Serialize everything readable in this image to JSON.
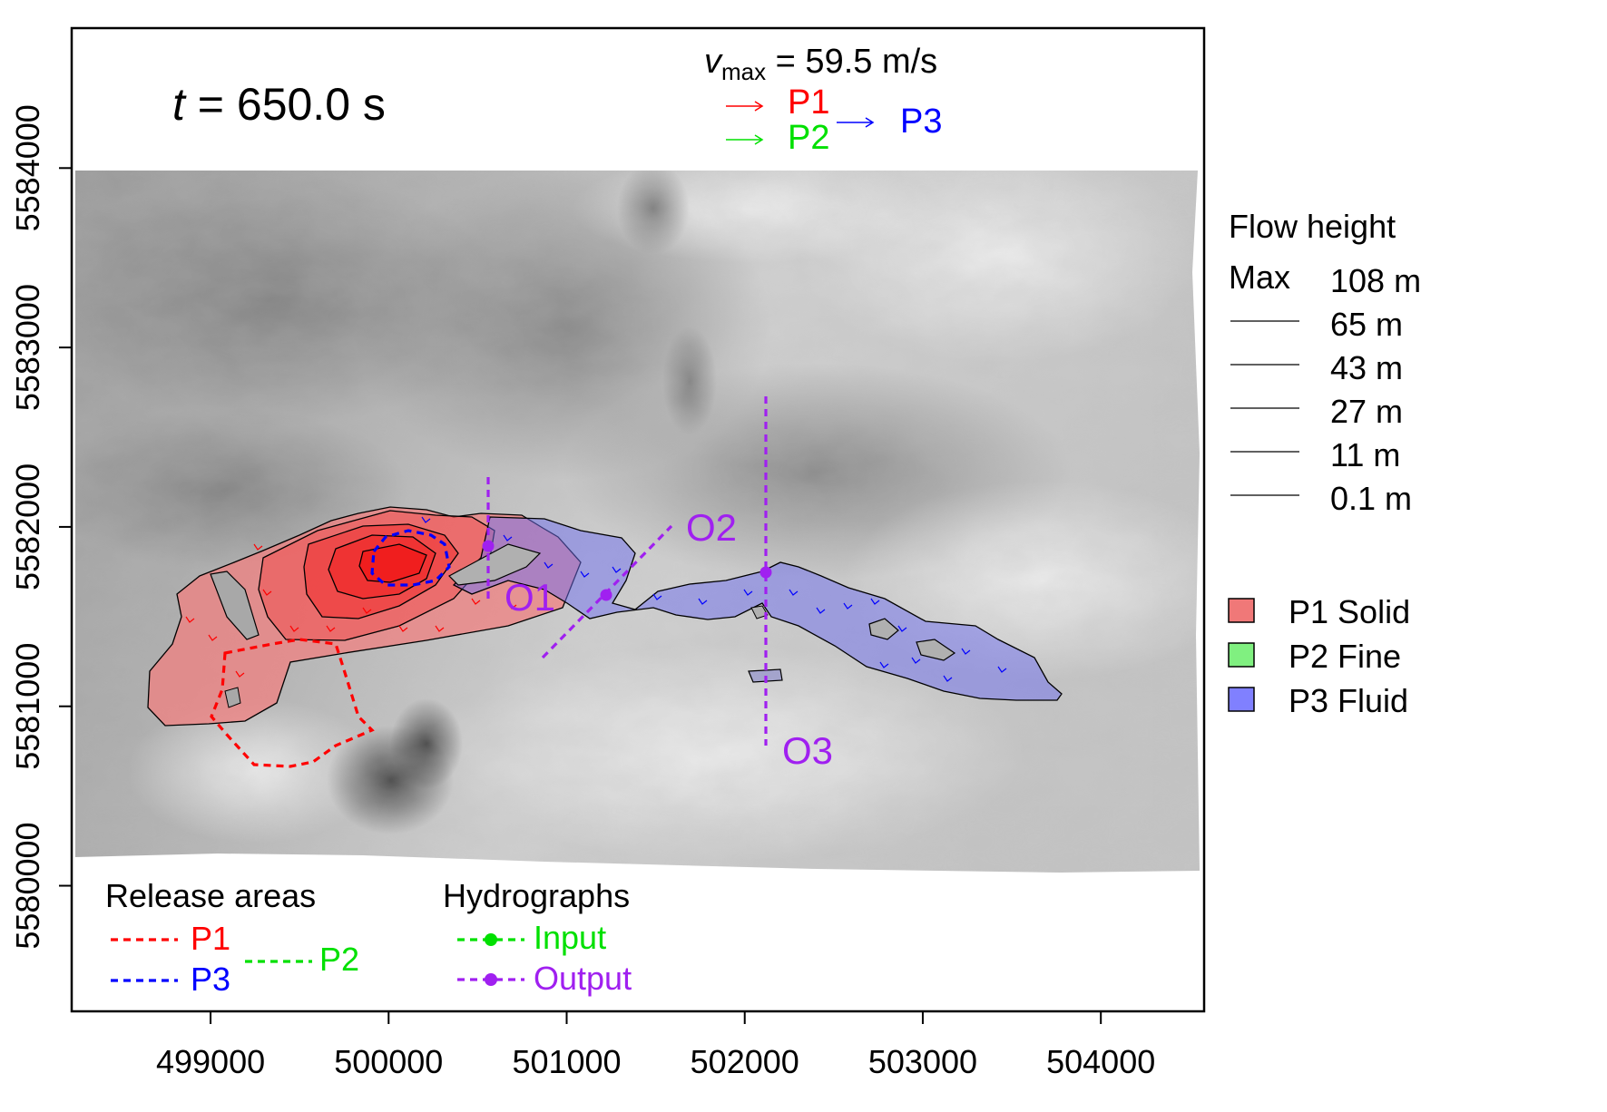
{
  "time_label": {
    "var": "t",
    "rest": " = 650.0 s"
  },
  "velocity": {
    "symbol": "v",
    "subscript": "max",
    "value": " = 59.5 m/s",
    "arrows": [
      {
        "label": "P1",
        "color": "#ff0000"
      },
      {
        "label": "P2",
        "color": "#00e000"
      },
      {
        "label": "P3",
        "color": "#0000ff"
      }
    ]
  },
  "axes": {
    "x_ticks": [
      "499000",
      "500000",
      "501000",
      "502000",
      "503000",
      "504000"
    ],
    "x_tick_values": [
      499000,
      500000,
      501000,
      502000,
      503000,
      504000
    ],
    "y_ticks": [
      "5580000",
      "5581000",
      "5582000",
      "5583000",
      "5584000"
    ],
    "y_tick_values": [
      5580000,
      5581000,
      5582000,
      5583000,
      5584000
    ],
    "x_range": [
      498220,
      504580
    ],
    "y_range": [
      5579300,
      5584780
    ]
  },
  "flow_height_legend": {
    "title": "Flow height",
    "max_label": "Max",
    "levels": [
      "108 m",
      "65 m",
      "43 m",
      "27 m",
      "11 m",
      "0.1 m"
    ]
  },
  "phase_legend": {
    "items": [
      {
        "label": "P1 Solid",
        "color": "#f07878"
      },
      {
        "label": "P2 Fine",
        "color": "#80f080"
      },
      {
        "label": "P3 Fluid",
        "color": "#8080ff"
      }
    ]
  },
  "release_legend": {
    "title": "Release areas",
    "items": [
      {
        "label": "P1",
        "color": "#ff0000"
      },
      {
        "label": "P2",
        "color": "#00e000"
      },
      {
        "label": "P3",
        "color": "#0000ff"
      }
    ]
  },
  "hydro_legend": {
    "title": "Hydrographs",
    "items": [
      {
        "label": "Input",
        "color": "#00e000"
      },
      {
        "label": "Output",
        "color": "#a020f0"
      }
    ]
  },
  "hydrographs": [
    {
      "label": "O1"
    },
    {
      "label": "O2"
    },
    {
      "label": "O3"
    }
  ],
  "colors": {
    "solid": "#f04040",
    "fluid": "#7070e8",
    "output": "#a020f0"
  }
}
